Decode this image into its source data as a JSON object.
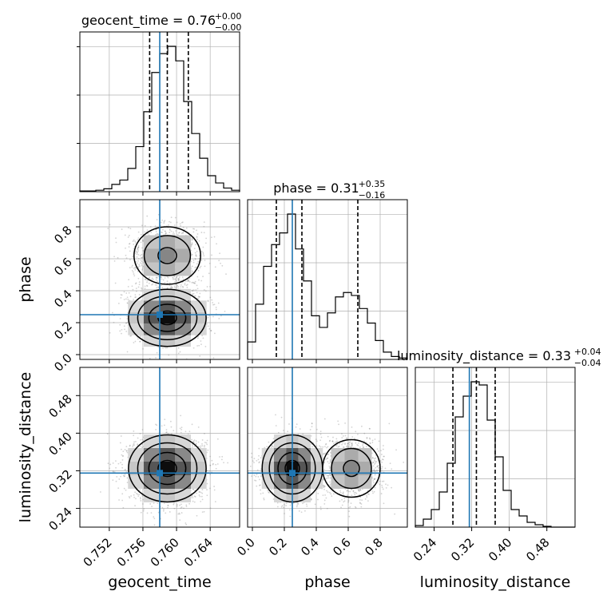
{
  "chart_data": {
    "type": "corner",
    "grid": true,
    "colors": {
      "truth": "#1f77b4",
      "hist": "#000000",
      "quantile": "#000000",
      "grid": "#b0b0b0",
      "scatter": "#808080"
    },
    "parameters": [
      {
        "name": "geocent_time",
        "xlabel": "geocent_time",
        "title": {
          "main": "geocent_time = 0.76",
          "sup": "+0.00",
          "sub": "−0.00"
        },
        "range": [
          0.7485,
          0.7675
        ],
        "ticks": [
          0.752,
          0.756,
          0.76,
          0.764
        ],
        "tick_labels": [
          "0.752",
          "0.756",
          "0.760",
          "0.764"
        ],
        "truth": 0.758,
        "quantiles": [
          0.7568,
          0.7589,
          0.7614
        ],
        "hist": [
          0.005,
          0.005,
          0.01,
          0.02,
          0.05,
          0.08,
          0.16,
          0.31,
          0.55,
          0.82,
          0.95,
          1.0,
          0.9,
          0.62,
          0.4,
          0.23,
          0.11,
          0.06,
          0.025,
          0.01
        ]
      },
      {
        "name": "phase",
        "xlabel": "phase",
        "ylabel": "phase",
        "title": {
          "main": "phase = 0.31",
          "sup": "+0.35",
          "sub": "−0.16"
        },
        "range": [
          -0.03,
          0.97
        ],
        "ticks": [
          0.0,
          0.2,
          0.4,
          0.6,
          0.8
        ],
        "tick_labels": [
          "0.0",
          "0.2",
          "0.4",
          "0.6",
          "0.8"
        ],
        "truth": 0.25,
        "quantiles": [
          0.15,
          0.31,
          0.66
        ],
        "hist": [
          0.12,
          0.38,
          0.64,
          0.79,
          0.87,
          1.0,
          0.76,
          0.54,
          0.3,
          0.22,
          0.32,
          0.43,
          0.46,
          0.44,
          0.35,
          0.25,
          0.13,
          0.05,
          0.02,
          0.01
        ]
      },
      {
        "name": "luminosity_distance",
        "xlabel": "luminosity_distance",
        "ylabel": "luminosity_distance",
        "title": {
          "main": "luminosity_distance = 0.33",
          "sup": "+0.04",
          "sub": "−0.04"
        },
        "range": [
          0.2,
          0.54
        ],
        "ticks": [
          0.24,
          0.32,
          0.4,
          0.48
        ],
        "tick_labels": [
          "0.24",
          "0.32",
          "0.40",
          "0.48"
        ],
        "truth": 0.315,
        "quantiles": [
          0.28,
          0.33,
          0.37
        ],
        "hist": [
          0.01,
          0.05,
          0.11,
          0.22,
          0.4,
          0.69,
          0.82,
          0.91,
          0.89,
          0.67,
          0.44,
          0.23,
          0.11,
          0.07,
          0.03,
          0.015,
          0.005,
          0.0,
          0.0,
          0.0
        ]
      }
    ],
    "pairs": [
      {
        "x": "geocent_time",
        "y": "phase"
      },
      {
        "x": "geocent_time",
        "y": "luminosity_distance"
      },
      {
        "x": "phase",
        "y": "luminosity_distance"
      }
    ]
  }
}
